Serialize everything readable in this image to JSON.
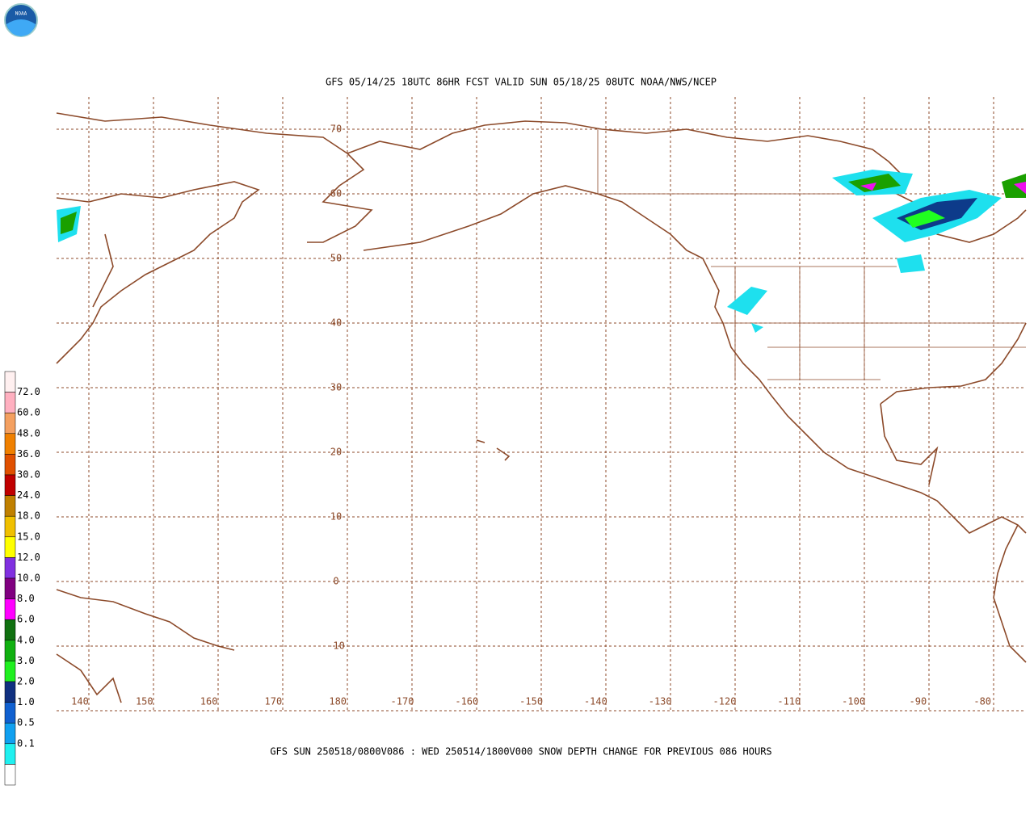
{
  "header": {
    "logo": "NOAA",
    "title": "GFS 05/14/25 18UTC 86HR FCST VALID SUN 05/18/25 08UTC NOAA/NWS/NCEP"
  },
  "map": {
    "lat_labels": [
      "70",
      "60",
      "50",
      "40",
      "30",
      "20",
      "10",
      "0",
      "-10"
    ],
    "lon_labels": [
      "140",
      "150",
      "160",
      "170",
      "180",
      "-170",
      "-160",
      "-150",
      "-140",
      "-130",
      "-120",
      "-110",
      "-100",
      "-90",
      "-80"
    ]
  },
  "legend": {
    "labels": [
      "72.0",
      "60.0",
      "48.0",
      "36.0",
      "30.0",
      "24.0",
      "18.0",
      "15.0",
      "12.0",
      "10.0",
      "8.0",
      "6.0",
      "4.0",
      "3.0",
      "2.0",
      "1.0",
      "0.5",
      "0.1"
    ]
  },
  "footer": {
    "caption": "GFS SUN 250518/0800V086 : WED 250514/1800V000 SNOW DEPTH CHANGE FOR PREVIOUS 086 HOURS"
  }
}
